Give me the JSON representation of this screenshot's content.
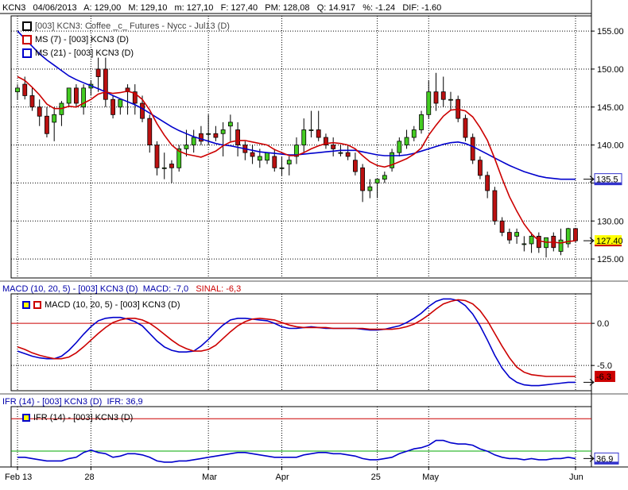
{
  "header": {
    "symbol": "KCN3",
    "date": "04/06/2013",
    "open": "A: 129,00",
    "high": "M: 129,10",
    "low": "m: 127,10",
    "close": "F: 127,40",
    "avg": "PM: 128,08",
    "qty": "Q: 14.917",
    "pct": "%: -1.24",
    "dif": "DIF: -1.60"
  },
  "price_panel": {
    "legend": [
      {
        "text": "[003] KCN3: Coffee _c_ Futures - Nycc - Jul13    (D)",
        "color": "#000000"
      },
      {
        "text": "MS (7)  - [003] KCN3 (D)",
        "color": "#cc0000"
      },
      {
        "text": "MS (21)  - [003] KCN3 (D)",
        "color": "#0000cc"
      }
    ],
    "ma7_tag": "127.40",
    "ma21_tag": "135.5",
    "axis_labels": [
      "155.00",
      "150.00",
      "145.00",
      "140.00",
      "135.00",
      "130.00",
      "125.00"
    ]
  },
  "macd_panel": {
    "title": "MACD (10, 20, 5)  - [003] KCN3 (D)",
    "title_value": "MACD: -7,0",
    "signal_value": "SINAL: -6,3",
    "legend": "MACD (10, 20, 5)  - [003] KCN3 (D)",
    "axis_labels": [
      "0.0",
      "-5.0"
    ],
    "signal_tag": "-6.3"
  },
  "ifr_panel": {
    "title": "IFR (14)  - [003] KCN3 (D)",
    "title_value": "IFR: 36,9",
    "legend": "IFR (14)  - [003] KCN3 (D)",
    "ifr_tag": "36.9"
  },
  "x_axis_labels": [
    "Feb 13",
    "28",
    "Mar",
    "Apr",
    "25",
    "May",
    "Jun"
  ],
  "colors": {
    "up": "#44cc22",
    "down": "#bb1111",
    "ma7": "#cc0000",
    "ma21": "#0000cc",
    "macd": "#0000cc",
    "signal": "#cc0000",
    "ifr": "#0000cc",
    "ifr_upper": "#cc0000",
    "ifr_lower": "#00aa00",
    "tag_yellow": "#ffff00",
    "tag_blue": "#3333cc",
    "tag_red": "#cc0000"
  },
  "chart_data": [
    {
      "type": "candlestick",
      "title": "[003] KCN3: Coffee _c_ Futures - Nycc - Jul13 (D)",
      "ylim": [
        122.5,
        157
      ],
      "dates": [
        "Feb 13",
        "Feb 14",
        "Feb 15",
        "Feb 19",
        "Feb 20",
        "Feb 21",
        "Feb 22",
        "Feb 25",
        "Feb 26",
        "Feb 27",
        "Feb 28",
        "Mar 1",
        "Mar 4",
        "Mar 5",
        "Mar 6",
        "Mar 7",
        "Mar 8",
        "Mar 11",
        "Mar 12",
        "Mar 13",
        "Mar 14",
        "Mar 15",
        "Mar 18",
        "Mar 19",
        "Mar 20",
        "Mar 21",
        "Mar 22",
        "Mar 25",
        "Mar 26",
        "Mar 27",
        "Mar 28",
        "Apr 1",
        "Apr 2",
        "Apr 3",
        "Apr 4",
        "Apr 5",
        "Apr 8",
        "Apr 9",
        "Apr 10",
        "Apr 11",
        "Apr 12",
        "Apr 15",
        "Apr 16",
        "Apr 17",
        "Apr 18",
        "Apr 19",
        "Apr 22",
        "Apr 23",
        "Apr 24",
        "Apr 25",
        "Apr 26",
        "Apr 29",
        "Apr 30",
        "May 1",
        "May 2",
        "May 3",
        "May 6",
        "May 7",
        "May 8",
        "May 9",
        "May 10",
        "May 13",
        "May 14",
        "May 15",
        "May 16",
        "May 17",
        "May 20",
        "May 21",
        "May 22",
        "May 23",
        "May 24",
        "May 28",
        "May 29",
        "May 30",
        "May 31",
        "Jun 3",
        "Jun 4"
      ],
      "series": [
        {
          "name": "KCN3",
          "open": [
            147.0,
            148.0,
            146.5,
            145.0,
            143.8,
            143.0,
            144.0,
            145.5,
            147.5,
            145.0,
            147.5,
            150.0,
            150.0,
            146.0,
            145.0,
            147.5,
            147.0,
            145.5,
            143.5,
            140.0,
            137.0,
            137.5,
            137.0,
            139.5,
            140.0,
            141.5,
            141.5,
            141.5,
            141.5,
            142.5,
            142.0,
            140.0,
            139.0,
            138.0,
            138.0,
            138.5,
            137.0,
            137.5,
            138.5,
            140.0,
            142.0,
            142.0,
            141.0,
            140.0,
            139.0,
            139.0,
            138.0,
            137.0,
            134.0,
            135.0,
            135.5,
            137.0,
            139.0,
            140.0,
            141.0,
            142.0,
            144.0,
            147.0,
            147.0,
            146.0,
            146.0,
            143.5,
            141.0,
            138.0,
            136.0,
            134.0,
            130.0,
            128.5,
            128.0,
            127.0,
            127.0,
            128.0,
            126.5,
            128.0,
            126.0,
            127.0,
            129.0
          ],
          "high": [
            148.0,
            149.0,
            147.5,
            146.0,
            145.0,
            145.0,
            145.8,
            147.5,
            148.0,
            148.0,
            148.5,
            151.5,
            151.5,
            146.5,
            146.0,
            148.0,
            148.0,
            146.5,
            144.0,
            140.5,
            139.0,
            138.0,
            140.0,
            142.0,
            142.0,
            142.5,
            144.0,
            142.5,
            143.0,
            144.0,
            143.0,
            140.5,
            140.0,
            139.5,
            139.0,
            139.5,
            138.5,
            138.5,
            141.0,
            143.5,
            144.5,
            144.5,
            141.5,
            141.0,
            140.0,
            140.0,
            139.0,
            137.5,
            135.5,
            135.5,
            136.5,
            139.5,
            141.0,
            142.0,
            142.5,
            144.5,
            148.5,
            149.5,
            149.0,
            147.0,
            146.5,
            144.0,
            141.5,
            138.5,
            136.5,
            134.5,
            130.5,
            129.0,
            129.0,
            128.0,
            128.5,
            128.5,
            127.5,
            128.5,
            129.0,
            129.1,
            129.1
          ],
          "low": [
            146.0,
            146.0,
            144.5,
            142.5,
            141.0,
            140.5,
            142.5,
            145.0,
            145.0,
            144.0,
            146.5,
            147.0,
            145.0,
            143.5,
            144.0,
            144.0,
            144.0,
            143.0,
            139.0,
            136.0,
            135.5,
            135.0,
            136.5,
            138.5,
            139.0,
            140.0,
            140.0,
            140.5,
            138.5,
            140.5,
            138.5,
            138.0,
            137.5,
            137.0,
            137.5,
            136.5,
            136.0,
            136.0,
            137.5,
            139.0,
            141.0,
            140.5,
            139.5,
            138.5,
            138.5,
            138.0,
            136.0,
            132.5,
            133.0,
            133.0,
            135.0,
            136.5,
            138.5,
            139.5,
            140.5,
            141.5,
            143.5,
            144.5,
            145.0,
            144.5,
            143.0,
            140.5,
            137.5,
            135.5,
            133.0,
            129.5,
            128.0,
            127.0,
            127.0,
            126.0,
            125.8,
            125.8,
            125.2,
            126.0,
            125.5,
            126.5,
            127.1
          ],
          "close": [
            147.5,
            146.5,
            145.0,
            143.8,
            141.5,
            144.0,
            145.5,
            147.5,
            145.5,
            147.5,
            148.0,
            149.0,
            146.0,
            144.0,
            146.0,
            147.0,
            145.5,
            143.5,
            140.0,
            137.0,
            137.0,
            137.0,
            139.5,
            140.0,
            141.0,
            140.5,
            141.5,
            141.0,
            142.0,
            143.0,
            140.0,
            139.0,
            138.5,
            138.5,
            139.0,
            137.0,
            137.0,
            138.0,
            140.0,
            142.0,
            142.0,
            141.0,
            140.0,
            139.5,
            139.0,
            138.5,
            136.5,
            134.0,
            134.5,
            135.5,
            136.0,
            139.0,
            140.5,
            141.0,
            142.0,
            144.0,
            147.0,
            145.5,
            146.0,
            146.0,
            143.5,
            141.0,
            138.0,
            136.0,
            134.0,
            130.0,
            128.5,
            127.5,
            128.5,
            127.0,
            128.0,
            126.5,
            127.8,
            126.5,
            127.5,
            129.0,
            127.4
          ]
        },
        {
          "name": "MS (7)",
          "values": [
            149.0,
            148.5,
            147.6,
            146.6,
            145.4,
            144.8,
            144.8,
            145.1,
            145.0,
            145.5,
            146.0,
            146.7,
            147.0,
            146.8,
            146.9,
            147.1,
            146.8,
            146.0,
            144.6,
            142.8,
            141.3,
            140.0,
            139.2,
            138.8,
            138.6,
            138.4,
            138.8,
            139.2,
            139.9,
            140.4,
            140.6,
            140.6,
            140.4,
            140.2,
            140.0,
            139.4,
            139.0,
            138.6,
            138.6,
            139.0,
            139.5,
            139.9,
            140.2,
            140.3,
            140.2,
            140.0,
            139.5,
            138.6,
            137.8,
            137.3,
            137.1,
            137.4,
            137.8,
            138.2,
            138.8,
            139.6,
            141.3,
            142.6,
            143.8,
            144.6,
            144.7,
            144.5,
            143.7,
            142.3,
            140.6,
            138.2,
            135.6,
            133.2,
            131.3,
            129.6,
            128.3,
            127.4,
            127.2,
            127.2,
            127.1,
            127.3,
            127.4
          ]
        },
        {
          "name": "MS (21)",
          "values": [
            155.0,
            154.0,
            153.0,
            152.0,
            151.2,
            150.5,
            149.8,
            149.1,
            148.6,
            148.2,
            147.8,
            147.4,
            147.0,
            146.5,
            146.1,
            145.7,
            145.3,
            144.8,
            144.2,
            143.6,
            143.0,
            142.4,
            141.9,
            141.5,
            141.1,
            140.8,
            140.5,
            140.2,
            140.0,
            139.9,
            139.7,
            139.5,
            139.3,
            139.1,
            139.0,
            138.9,
            138.8,
            138.7,
            138.7,
            138.8,
            138.9,
            139.0,
            139.1,
            139.2,
            139.3,
            139.3,
            139.3,
            139.1,
            138.9,
            138.7,
            138.6,
            138.6,
            138.6,
            138.7,
            138.9,
            139.2,
            139.5,
            139.8,
            140.1,
            140.3,
            140.4,
            140.2,
            139.8,
            139.3,
            138.8,
            138.3,
            137.8,
            137.3,
            136.9,
            136.5,
            136.2,
            135.9,
            135.7,
            135.6,
            135.5,
            135.5,
            135.5
          ]
        }
      ]
    },
    {
      "type": "line",
      "title": "MACD (10, 20, 5) - [003] KCN3 (D)",
      "ylim": [
        -8.0,
        3.5
      ],
      "series": [
        {
          "name": "MACD",
          "values": [
            -3.3,
            -3.6,
            -3.9,
            -4.1,
            -4.2,
            -4.2,
            -3.9,
            -3.2,
            -2.3,
            -1.3,
            -0.4,
            0.3,
            0.6,
            0.7,
            0.7,
            0.5,
            0.2,
            -0.3,
            -1.2,
            -2.1,
            -2.8,
            -3.2,
            -3.4,
            -3.4,
            -3.3,
            -2.7,
            -1.9,
            -1.0,
            -0.2,
            0.4,
            0.6,
            0.6,
            0.5,
            0.4,
            0.3,
            0.0,
            -0.4,
            -0.6,
            -0.6,
            -0.5,
            -0.4,
            -0.5,
            -0.6,
            -0.6,
            -0.6,
            -0.6,
            -0.6,
            -0.7,
            -0.8,
            -0.8,
            -0.7,
            -0.5,
            -0.3,
            0.1,
            0.6,
            1.2,
            2.0,
            2.6,
            2.9,
            2.9,
            2.7,
            2.1,
            1.1,
            -0.3,
            -2.0,
            -3.8,
            -5.3,
            -6.4,
            -7.0,
            -7.3,
            -7.4,
            -7.4,
            -7.3,
            -7.2,
            -7.1,
            -7.0,
            -7.0
          ]
        },
        {
          "name": "Signal",
          "values": [
            -2.8,
            -3.1,
            -3.5,
            -3.8,
            -4.0,
            -4.2,
            -4.2,
            -4.0,
            -3.5,
            -2.8,
            -2.0,
            -1.2,
            -0.5,
            0.1,
            0.4,
            0.6,
            0.6,
            0.4,
            0.0,
            -0.6,
            -1.3,
            -2.0,
            -2.6,
            -3.0,
            -3.3,
            -3.3,
            -3.1,
            -2.6,
            -1.8,
            -1.0,
            -0.3,
            0.2,
            0.5,
            0.6,
            0.5,
            0.4,
            0.1,
            -0.2,
            -0.4,
            -0.5,
            -0.5,
            -0.5,
            -0.5,
            -0.6,
            -0.6,
            -0.6,
            -0.6,
            -0.6,
            -0.7,
            -0.7,
            -0.7,
            -0.7,
            -0.6,
            -0.4,
            -0.1,
            0.4,
            1.0,
            1.7,
            2.3,
            2.6,
            2.8,
            2.7,
            2.3,
            1.5,
            0.3,
            -1.2,
            -2.7,
            -4.1,
            -5.2,
            -5.8,
            -6.1,
            -6.2,
            -6.3,
            -6.3,
            -6.3,
            -6.3,
            -6.3
          ]
        }
      ]
    },
    {
      "type": "line",
      "title": "IFR (14) - [003] KCN3 (D)",
      "ylim": [
        30,
        80
      ],
      "reference_lines": [
        70,
        30
      ],
      "series": [
        {
          "name": "IFR",
          "values": [
            38,
            38,
            37,
            36,
            35,
            35,
            35,
            37,
            38,
            42,
            44,
            42,
            41,
            38,
            39,
            41,
            41,
            40,
            38,
            35,
            34,
            34,
            35,
            35,
            36,
            37,
            38,
            39,
            40,
            41,
            42,
            42,
            41,
            40,
            39,
            38,
            38,
            38,
            38,
            40,
            41,
            42,
            42,
            41,
            41,
            40,
            39,
            37,
            36,
            36,
            37,
            38,
            41,
            43,
            45,
            46,
            48,
            52,
            52,
            50,
            49,
            49,
            48,
            45,
            43,
            40,
            38,
            37,
            37,
            36,
            37,
            36,
            36,
            37,
            37,
            38,
            37
          ]
        }
      ]
    }
  ]
}
